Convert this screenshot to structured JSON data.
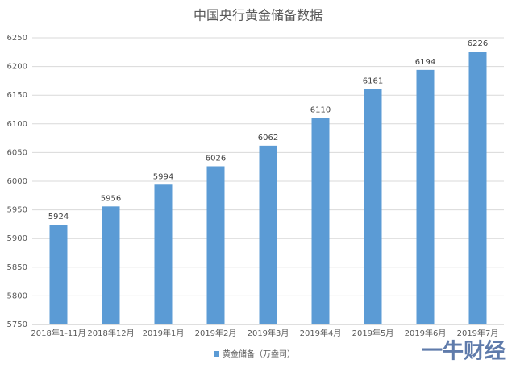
{
  "chart_data": {
    "type": "bar",
    "title": "中国央行黄金储备数据",
    "categories": [
      "2018年1-11月",
      "2018年12月",
      "2019年1月",
      "2019年2月",
      "2019年3月",
      "2019年4月",
      "2019年5月",
      "2019年6月",
      "2019年7月"
    ],
    "series": [
      {
        "name": "黄金储备（万盎司）",
        "color": "#5b9bd5",
        "values": [
          5924,
          5956,
          5994,
          6026,
          6062,
          6110,
          6161,
          6194,
          6226
        ]
      }
    ],
    "ylim": [
      5750,
      6250
    ],
    "yticks": [
      5750,
      5800,
      5850,
      5900,
      5950,
      6000,
      6050,
      6100,
      6150,
      6200,
      6250
    ],
    "grid": true,
    "legend": "bottom",
    "watermark": "一牛财经"
  }
}
